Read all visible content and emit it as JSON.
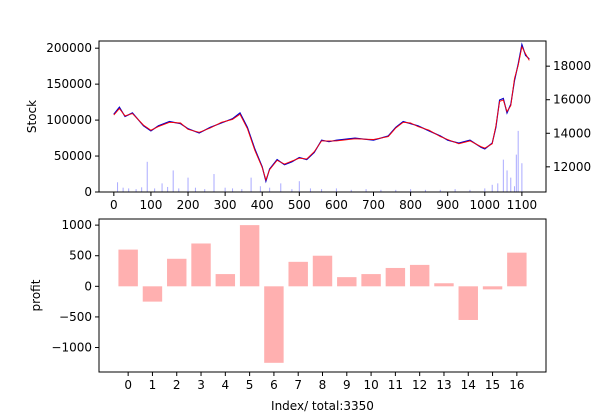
{
  "chart_data": [
    {
      "type": "line",
      "ylabel": "Stock",
      "xlim": [
        -40,
        1165
      ],
      "ylim": [
        0,
        210000
      ],
      "x_ticks": [
        0,
        100,
        200,
        300,
        400,
        500,
        600,
        700,
        800,
        900,
        1000,
        1100
      ],
      "x_tick_labels": [
        "0",
        "100",
        "200",
        "300",
        "400",
        "500",
        "600",
        "700",
        "800",
        "900",
        "1000",
        "1100"
      ],
      "y_ticks": [
        0,
        50000,
        100000,
        150000,
        200000
      ],
      "y_tick_labels": [
        "0",
        "50000",
        "100000",
        "150000",
        "200000"
      ],
      "y2_lim": [
        10500,
        19500
      ],
      "y2_ticks": [
        12000,
        14000,
        16000,
        18000
      ],
      "y2_tick_labels": [
        "12000",
        "14000",
        "16000",
        "18000"
      ],
      "series": [
        {
          "color": "#0000cc",
          "x": [
            0,
            15,
            30,
            50,
            80,
            100,
            120,
            150,
            180,
            200,
            230,
            260,
            290,
            320,
            340,
            360,
            380,
            400,
            410,
            420,
            440,
            460,
            480,
            500,
            520,
            540,
            560,
            580,
            600,
            650,
            700,
            740,
            760,
            780,
            800,
            820,
            850,
            880,
            900,
            930,
            960,
            990,
            1000,
            1020,
            1030,
            1040,
            1050,
            1060,
            1070,
            1080,
            1090,
            1100,
            1110,
            1120
          ],
          "values": [
            108000,
            118000,
            105000,
            110000,
            92000,
            85000,
            92000,
            98000,
            95000,
            88000,
            82000,
            90000,
            96000,
            102000,
            110000,
            90000,
            60000,
            35000,
            15000,
            32000,
            45000,
            38000,
            42000,
            48000,
            45000,
            55000,
            72000,
            70000,
            72000,
            75000,
            72000,
            78000,
            90000,
            98000,
            95000,
            92000,
            85000,
            78000,
            72000,
            68000,
            72000,
            62000,
            60000,
            68000,
            90000,
            128000,
            130000,
            110000,
            122000,
            155000,
            178000,
            205000,
            190000,
            185000
          ]
        },
        {
          "color": "#ff0000",
          "x": [
            0,
            15,
            30,
            50,
            80,
            100,
            120,
            150,
            180,
            200,
            230,
            260,
            290,
            320,
            340,
            360,
            380,
            400,
            410,
            420,
            440,
            460,
            480,
            500,
            520,
            540,
            560,
            580,
            600,
            650,
            700,
            740,
            760,
            780,
            800,
            820,
            850,
            880,
            900,
            930,
            960,
            990,
            1000,
            1020,
            1030,
            1040,
            1050,
            1060,
            1070,
            1080,
            1090,
            1100,
            1110,
            1120
          ],
          "values": [
            107000,
            116000,
            106000,
            109000,
            93000,
            86000,
            91000,
            97000,
            96000,
            87000,
            83000,
            89000,
            97000,
            101000,
            108000,
            88000,
            58000,
            34000,
            17000,
            31000,
            44000,
            39000,
            43000,
            47000,
            46000,
            56000,
            71000,
            71000,
            71000,
            74000,
            73000,
            77000,
            89000,
            97000,
            96000,
            91000,
            86000,
            77000,
            73000,
            67000,
            71000,
            63000,
            61000,
            67000,
            92000,
            126000,
            128000,
            112000,
            120000,
            158000,
            176000,
            202000,
            192000,
            183000
          ]
        }
      ],
      "volume_bars": {
        "color": "#aaaaff",
        "x": [
          10,
          25,
          40,
          60,
          75,
          90,
          110,
          130,
          145,
          160,
          175,
          200,
          220,
          245,
          270,
          300,
          320,
          345,
          370,
          395,
          420,
          450,
          480,
          500,
          530,
          560,
          600,
          640,
          680,
          720,
          760,
          800,
          840,
          880,
          920,
          960,
          1000,
          1020,
          1035,
          1050,
          1060,
          1070,
          1080,
          1085,
          1090,
          1100
        ],
        "values": [
          13500,
          6000,
          5000,
          4000,
          6500,
          42000,
          5000,
          12000,
          7000,
          30000,
          5000,
          20000,
          6000,
          4000,
          25000,
          6000,
          5000,
          4000,
          20000,
          8000,
          6000,
          12000,
          4000,
          15000,
          5000,
          4000,
          5000,
          3000,
          4000,
          3000,
          3000,
          4000,
          3000,
          3000,
          4000,
          3000,
          5000,
          10000,
          12000,
          45000,
          30000,
          20000,
          8000,
          52000,
          85000,
          40000
        ]
      }
    },
    {
      "type": "bar",
      "xlabel": "Index/ total:3350",
      "ylabel": "profit",
      "categories": [
        "0",
        "1",
        "2",
        "3",
        "4",
        "5",
        "6",
        "7",
        "8",
        "9",
        "10",
        "11",
        "12",
        "13",
        "14",
        "15",
        "16"
      ],
      "values": [
        600,
        -250,
        450,
        700,
        200,
        1000,
        -1250,
        400,
        500,
        150,
        200,
        300,
        350,
        50,
        -550,
        -50,
        550
      ],
      "bar_color": "#ffb0b0",
      "ylim": [
        -1400,
        1100
      ],
      "y_ticks": [
        -1000,
        -500,
        0,
        500,
        1000
      ],
      "y_tick_labels": [
        "−1000",
        "−500",
        "0",
        "500",
        "1000"
      ]
    }
  ]
}
